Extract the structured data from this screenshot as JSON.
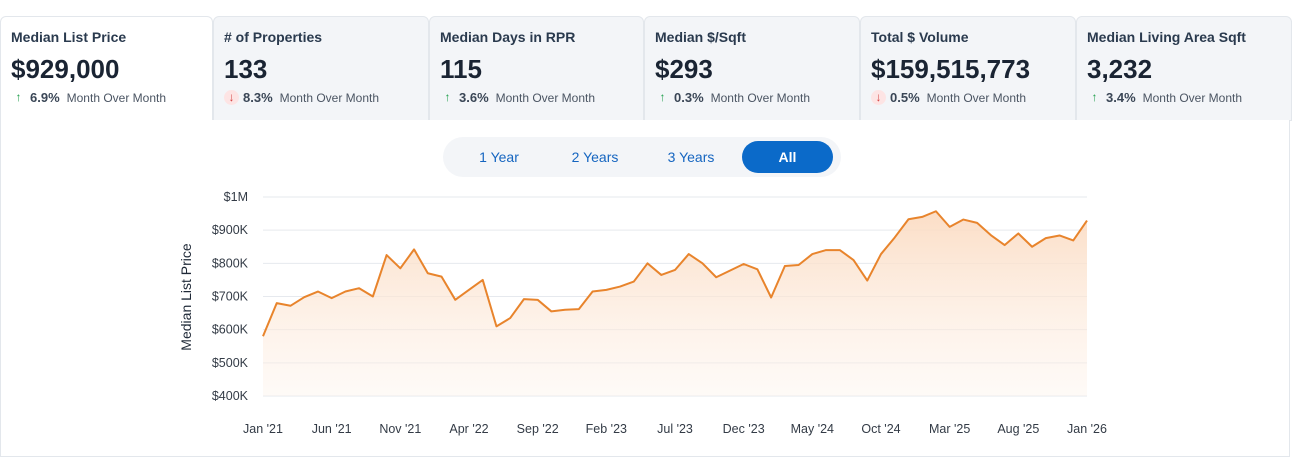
{
  "tabs": [
    {
      "title": "Median List Price",
      "value": "$929,000",
      "direction": "up",
      "change": "6.9%",
      "period": "Month Over Month"
    },
    {
      "title": "# of Properties",
      "value": "133",
      "direction": "down",
      "change": "8.3%",
      "period": "Month Over Month"
    },
    {
      "title": "Median Days in RPR",
      "value": "115",
      "direction": "up",
      "change": "3.6%",
      "period": "Month Over Month"
    },
    {
      "title": "Median $/Sqft",
      "value": "$293",
      "direction": "up",
      "change": "0.3%",
      "period": "Month Over Month"
    },
    {
      "title": "Total $ Volume",
      "value": "$159,515,773",
      "direction": "down",
      "change": "0.5%",
      "period": "Month Over Month"
    },
    {
      "title": "Median Living Area Sqft",
      "value": "3,232",
      "direction": "up",
      "change": "3.4%",
      "period": "Month Over Month"
    }
  ],
  "arrows": {
    "up": "↑",
    "down": "↓"
  },
  "range": {
    "options": [
      "1 Year",
      "2 Years",
      "3 Years",
      "All"
    ],
    "selected": "All"
  },
  "colors": {
    "line": "#e8842c",
    "fill_top": "#fbe3cf",
    "accent": "#0b6ac9"
  },
  "chart_data": {
    "type": "area",
    "ylabel": "Median List Price",
    "ylim": [
      400000,
      1000000
    ],
    "yticks": [
      400000,
      500000,
      600000,
      700000,
      800000,
      900000,
      1000000
    ],
    "ytick_labels": [
      "$400K",
      "$500K",
      "$600K",
      "$700K",
      "$800K",
      "$900K",
      "$1M"
    ],
    "xtick_labels": [
      "Jan '21",
      "Jun '21",
      "Nov '21",
      "Apr '22",
      "Sep '22",
      "Feb '23",
      "Jul '23",
      "Dec '23",
      "May '24",
      "Oct '24",
      "Mar '25",
      "Aug '25",
      "Jan '26"
    ],
    "xtick_every": 5,
    "start": "Jan '21",
    "values": [
      580000,
      680000,
      672000,
      698000,
      715000,
      695000,
      715000,
      725000,
      700000,
      825000,
      785000,
      842000,
      770000,
      760000,
      690000,
      720000,
      750000,
      610000,
      635000,
      692000,
      690000,
      655000,
      660000,
      662000,
      715000,
      720000,
      730000,
      745000,
      800000,
      765000,
      780000,
      828000,
      800000,
      758000,
      778000,
      798000,
      782000,
      697000,
      792000,
      795000,
      828000,
      840000,
      840000,
      810000,
      748000,
      828000,
      878000,
      933000,
      940000,
      957000,
      910000,
      932000,
      922000,
      885000,
      855000,
      890000,
      850000,
      876000,
      884000,
      869000,
      929000
    ]
  }
}
